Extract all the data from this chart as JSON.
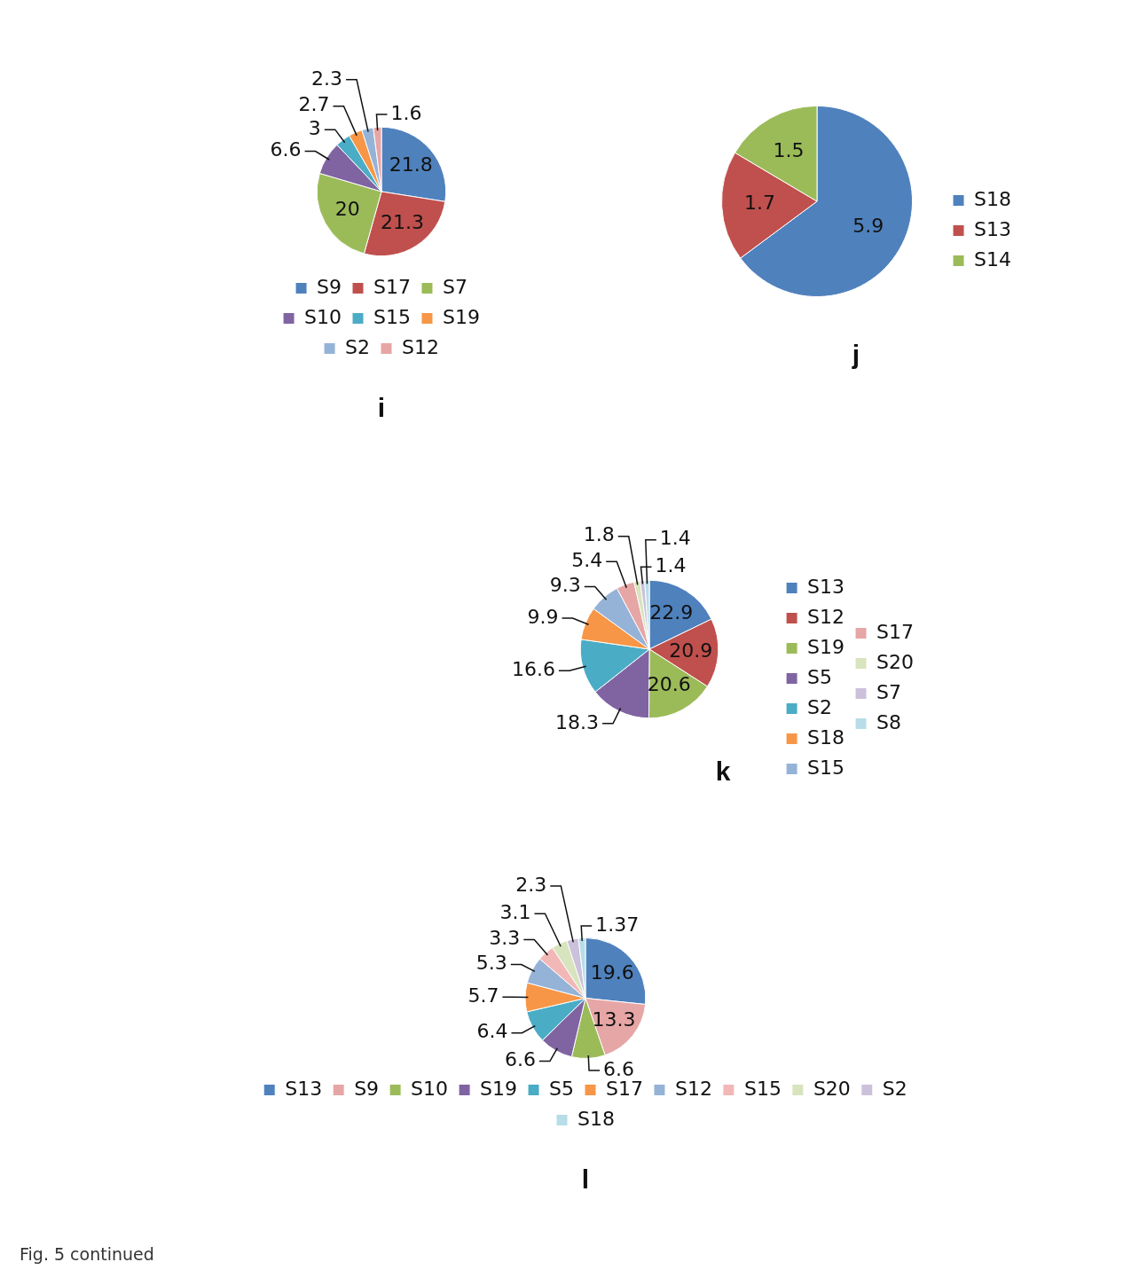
{
  "chart_data": [
    {
      "type": "pie",
      "title": "i",
      "categories": [
        "S9",
        "S17",
        "S7",
        "S10",
        "S15",
        "S19",
        "S2",
        "S12"
      ],
      "values": [
        21.8,
        21.3,
        20,
        6.6,
        3,
        2.7,
        2.3,
        1.6
      ],
      "colors": [
        "#4f81bd",
        "#c0504d",
        "#9bbb59",
        "#8064a2",
        "#4bacc6",
        "#f79646",
        "#95b3d7",
        "#e6a6a5"
      ],
      "data_labels": true,
      "legend": "bottom"
    },
    {
      "type": "pie",
      "title": "j",
      "categories": [
        "S18",
        "S13",
        "S14"
      ],
      "values": [
        5.9,
        1.7,
        1.5
      ],
      "colors": [
        "#4f81bd",
        "#c0504d",
        "#9bbb59"
      ],
      "data_labels": true,
      "legend": "right"
    },
    {
      "type": "pie",
      "title": "k",
      "categories": [
        "S13",
        "S12",
        "S19",
        "S5",
        "S2",
        "S18",
        "S15",
        "S17",
        "S20",
        "S7",
        "S8"
      ],
      "values": [
        22.9,
        20.9,
        20.6,
        18.3,
        16.6,
        9.9,
        9.3,
        5.4,
        1.8,
        1.4,
        1.4
      ],
      "colors": [
        "#4f81bd",
        "#c0504d",
        "#9bbb59",
        "#8064a2",
        "#4bacc6",
        "#f79646",
        "#95b3d7",
        "#e6a6a5",
        "#d7e4bd",
        "#ccc1da",
        "#b7dee8"
      ],
      "data_labels": true,
      "legend": "right"
    },
    {
      "type": "pie",
      "title": "l",
      "categories": [
        "S13",
        "S9",
        "S10",
        "S19",
        "S5",
        "S17",
        "S12",
        "S15",
        "S20",
        "S2",
        "S18"
      ],
      "values": [
        19.6,
        13.3,
        6.6,
        6.6,
        6.4,
        5.7,
        5.3,
        3.3,
        3.1,
        2.3,
        1.37
      ],
      "colors": [
        "#4f81bd",
        "#e6a6a5",
        "#9bbb59",
        "#8064a2",
        "#4bacc6",
        "#f79646",
        "#95b3d7",
        "#f2b8b7",
        "#d7e4bd",
        "#ccc1da",
        "#b7dee8"
      ],
      "data_labels": true,
      "legend": "bottom",
      "annotations": [
        "Fig. 5 continued"
      ]
    }
  ]
}
